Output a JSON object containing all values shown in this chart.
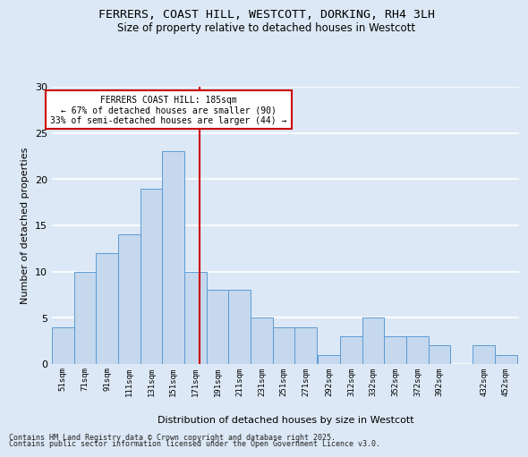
{
  "title": "FERRERS, COAST HILL, WESTCOTT, DORKING, RH4 3LH",
  "subtitle": "Size of property relative to detached houses in Westcott",
  "xlabel": "Distribution of detached houses by size in Westcott",
  "ylabel": "Number of detached properties",
  "footer1": "Contains HM Land Registry data © Crown copyright and database right 2025.",
  "footer2": "Contains public sector information licensed under the Open Government Licence v3.0.",
  "annotation_title": "FERRERS COAST HILL: 185sqm",
  "annotation_line1": "← 67% of detached houses are smaller (90)",
  "annotation_line2": "33% of semi-detached houses are larger (44) →",
  "categories": [
    "51sqm",
    "71sqm",
    "91sqm",
    "111sqm",
    "131sqm",
    "151sqm",
    "171sqm",
    "191sqm",
    "211sqm",
    "231sqm",
    "251sqm",
    "271sqm",
    "292sqm",
    "312sqm",
    "332sqm",
    "352sqm",
    "372sqm",
    "392sqm",
    "432sqm",
    "452sqm"
  ],
  "values": [
    4,
    10,
    12,
    14,
    19,
    23,
    10,
    8,
    8,
    5,
    4,
    4,
    1,
    3,
    5,
    3,
    3,
    2,
    2,
    1
  ],
  "bar_color": "#c5d8ed",
  "bar_edge_color": "#5b9bd5",
  "vline_x": 185,
  "vline_color": "#cc0000",
  "bin_width": 20,
  "annotation_box_color": "#cc0000",
  "annotation_fill": "#ffffff",
  "background_color": "#dce8f5",
  "grid_color": "#ffffff",
  "ylim": [
    0,
    30
  ],
  "yticks": [
    0,
    5,
    10,
    15,
    20,
    25,
    30
  ]
}
